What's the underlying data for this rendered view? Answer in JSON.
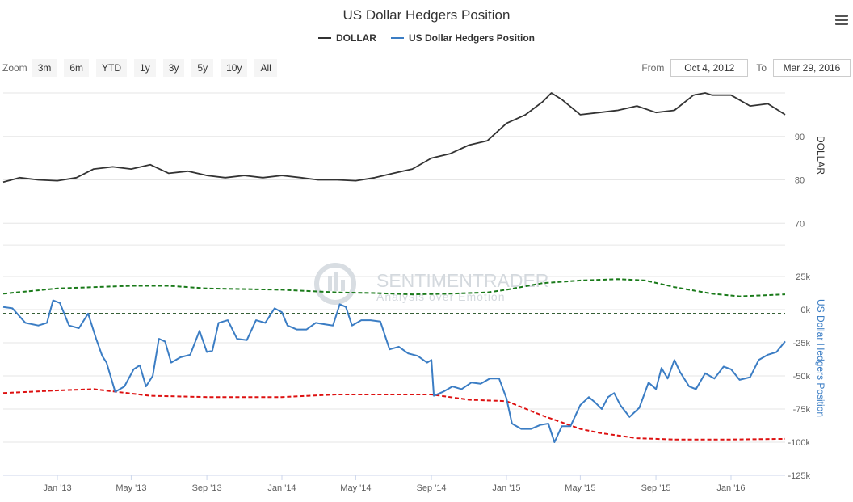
{
  "title": "US Dollar Hedgers Position",
  "legend": [
    {
      "name": "DOLLAR",
      "color": "#333333"
    },
    {
      "name": "US Dollar Hedgers Position",
      "color": "#3b7dc4"
    }
  ],
  "zoom": {
    "label": "Zoom",
    "buttons": [
      "3m",
      "6m",
      "YTD",
      "1y",
      "3y",
      "5y",
      "10y",
      "All"
    ]
  },
  "range": {
    "from_label": "From",
    "from_value": "Oct 4, 2012",
    "to_label": "To",
    "to_value": "Mar 29, 2016"
  },
  "watermark": {
    "line1": "SENTIMENTRADER",
    "line2": "Analysis over Emotion"
  },
  "colors": {
    "dollar": "#333333",
    "hedgers": "#3b7dc4",
    "upper_band": "#1a7a1a",
    "lower_band": "#dd1111",
    "zero_line": "#1a4a1a"
  },
  "chart_data": [
    {
      "type": "line",
      "name": "DOLLAR",
      "ylabel": "DOLLAR",
      "ylim": [
        60,
        100
      ],
      "yticks": [
        70,
        80,
        90
      ],
      "xticks": [
        "Jan '13",
        "May '13",
        "Sep '13",
        "Jan '14",
        "May '14",
        "Sep '14",
        "Jan '15",
        "May '15",
        "Sep '15",
        "Jan '16"
      ],
      "x": [
        "2012-10-05",
        "2012-11-01",
        "2012-12-01",
        "2013-01-01",
        "2013-02-01",
        "2013-03-01",
        "2013-04-01",
        "2013-05-01",
        "2013-06-01",
        "2013-07-01",
        "2013-08-01",
        "2013-09-01",
        "2013-10-01",
        "2013-11-01",
        "2013-12-01",
        "2014-01-01",
        "2014-02-01",
        "2014-03-01",
        "2014-04-01",
        "2014-05-01",
        "2014-06-01",
        "2014-07-01",
        "2014-08-01",
        "2014-09-01",
        "2014-10-01",
        "2014-11-01",
        "2014-12-01",
        "2015-01-01",
        "2015-02-01",
        "2015-03-01",
        "2015-03-15",
        "2015-04-01",
        "2015-05-01",
        "2015-06-01",
        "2015-07-01",
        "2015-08-01",
        "2015-09-01",
        "2015-10-01",
        "2015-11-01",
        "2015-11-20",
        "2015-12-01",
        "2016-01-01",
        "2016-02-01",
        "2016-03-01",
        "2016-03-29"
      ],
      "values": [
        79.5,
        80.5,
        80,
        79.8,
        80.5,
        82.5,
        83,
        82.5,
        83.5,
        81.5,
        82,
        81,
        80.5,
        81,
        80.5,
        81,
        80.5,
        80,
        80,
        79.8,
        80.5,
        81.5,
        82.5,
        85,
        86,
        88,
        89,
        93,
        95,
        98,
        100,
        98.5,
        95,
        95.5,
        96,
        97,
        95.5,
        96,
        99.5,
        100,
        99.5,
        99.5,
        97,
        97.5,
        95
      ]
    },
    {
      "type": "line",
      "name": "US Dollar Hedgers Position",
      "ylabel": "US Dollar Hedgers Position",
      "ylim": [
        -125000,
        25000
      ],
      "yticks": [
        "-125k",
        "-100k",
        "-75k",
        "-50k",
        "-25k",
        "0k",
        "25k"
      ],
      "x": [
        "2012-10-05",
        "2012-10-20",
        "2012-11-10",
        "2012-12-01",
        "2012-12-15",
        "2012-12-25",
        "2013-01-05",
        "2013-01-20",
        "2013-02-05",
        "2013-02-20",
        "2013-03-05",
        "2013-03-15",
        "2013-03-22",
        "2013-04-05",
        "2013-04-20",
        "2013-05-05",
        "2013-05-15",
        "2013-05-25",
        "2013-06-05",
        "2013-06-15",
        "2013-06-25",
        "2013-07-05",
        "2013-07-20",
        "2013-08-05",
        "2013-08-20",
        "2013-09-01",
        "2013-09-10",
        "2013-09-20",
        "2013-10-05",
        "2013-10-20",
        "2013-11-05",
        "2013-11-20",
        "2013-12-05",
        "2013-12-20",
        "2014-01-01",
        "2014-01-10",
        "2014-01-25",
        "2014-02-10",
        "2014-02-25",
        "2014-03-10",
        "2014-03-25",
        "2014-04-05",
        "2014-04-15",
        "2014-04-25",
        "2014-05-10",
        "2014-05-25",
        "2014-06-10",
        "2014-06-25",
        "2014-07-10",
        "2014-07-25",
        "2014-08-10",
        "2014-08-25",
        "2014-09-01",
        "2014-09-05",
        "2014-09-20",
        "2014-10-05",
        "2014-10-20",
        "2014-11-05",
        "2014-11-20",
        "2014-12-05",
        "2014-12-20",
        "2015-01-01",
        "2015-01-10",
        "2015-01-25",
        "2015-02-10",
        "2015-02-25",
        "2015-03-10",
        "2015-03-20",
        "2015-04-01",
        "2015-04-15",
        "2015-05-01",
        "2015-05-15",
        "2015-05-25",
        "2015-06-05",
        "2015-06-15",
        "2015-06-25",
        "2015-07-05",
        "2015-07-20",
        "2015-08-05",
        "2015-08-20",
        "2015-09-01",
        "2015-09-10",
        "2015-09-20",
        "2015-10-01",
        "2015-10-10",
        "2015-10-25",
        "2015-11-05",
        "2015-11-20",
        "2015-12-05",
        "2015-12-20",
        "2016-01-01",
        "2016-01-15",
        "2016-02-01",
        "2016-02-15",
        "2016-03-01",
        "2016-03-15",
        "2016-03-29"
      ],
      "values": [
        2000,
        1000,
        -10000,
        -12000,
        -10000,
        7000,
        5000,
        -12000,
        -14000,
        -3000,
        -22000,
        -35000,
        -40000,
        -62000,
        -58000,
        -45000,
        -42000,
        -58000,
        -50000,
        -22000,
        -24000,
        -40000,
        -36000,
        -34000,
        -16000,
        -32000,
        -31000,
        -10000,
        -8000,
        -22000,
        -23000,
        -8000,
        -10000,
        1000,
        -2000,
        -12000,
        -15000,
        -15000,
        -10000,
        -11000,
        -12000,
        4000,
        2000,
        -12000,
        -8000,
        -8000,
        -9000,
        -30000,
        -28000,
        -33000,
        -35000,
        -40000,
        -38000,
        -65000,
        -62000,
        -58000,
        -60000,
        -55000,
        -56000,
        -52000,
        -52000,
        -67000,
        -86000,
        -90000,
        -90000,
        -87000,
        -86000,
        -100000,
        -88000,
        -88000,
        -72000,
        -66000,
        -70000,
        -75000,
        -66000,
        -63000,
        -72000,
        -81000,
        -74000,
        -55000,
        -60000,
        -44000,
        -52000,
        -38000,
        -47000,
        -58000,
        -60000,
        -48000,
        -52000,
        -43000,
        -45000,
        -53000,
        -51000,
        -38000,
        -34000,
        -32000,
        -24000
      ]
    },
    {
      "type": "line",
      "name": "upper band",
      "x": [
        "2012-10-05",
        "2013-01-01",
        "2013-05-01",
        "2013-07-01",
        "2013-09-01",
        "2014-01-01",
        "2014-04-01",
        "2014-06-01",
        "2014-08-01",
        "2014-10-01",
        "2014-12-01",
        "2015-01-01",
        "2015-03-01",
        "2015-05-01",
        "2015-07-01",
        "2015-08-15",
        "2015-10-01",
        "2015-12-01",
        "2016-01-15",
        "2016-03-29"
      ],
      "values": [
        12000,
        16000,
        18000,
        18000,
        16000,
        15000,
        13000,
        12500,
        11500,
        12000,
        13000,
        15000,
        20000,
        22000,
        23000,
        22000,
        17000,
        12000,
        10000,
        11500
      ]
    },
    {
      "type": "line",
      "name": "zero line",
      "x": [
        "2012-10-05",
        "2016-03-29"
      ],
      "values": [
        -3000,
        -3000
      ]
    },
    {
      "type": "line",
      "name": "lower band",
      "x": [
        "2012-10-05",
        "2013-01-01",
        "2013-03-01",
        "2013-06-01",
        "2013-09-01",
        "2014-01-01",
        "2014-04-01",
        "2014-06-01",
        "2014-08-01",
        "2014-09-01",
        "2014-11-01",
        "2015-01-01",
        "2015-03-01",
        "2015-05-01",
        "2015-06-01",
        "2015-08-01",
        "2015-10-01",
        "2016-01-01",
        "2016-03-29"
      ],
      "values": [
        -63000,
        -61000,
        -60000,
        -65000,
        -66000,
        -66000,
        -64000,
        -64000,
        -64000,
        -64000,
        -68000,
        -69000,
        -80000,
        -90000,
        -93000,
        -97000,
        -98000,
        -98000,
        -97500
      ]
    }
  ]
}
